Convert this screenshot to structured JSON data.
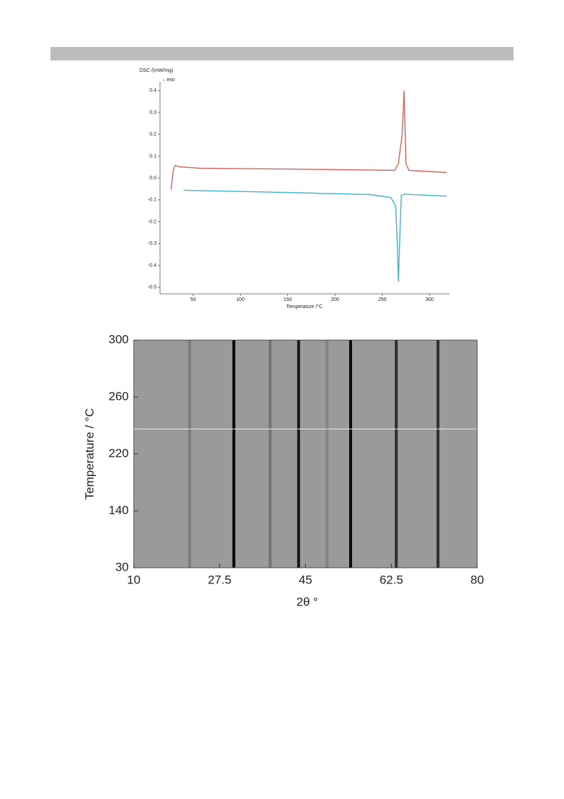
{
  "chart_data": [
    {
      "type": "line",
      "title": "DSC /(mW/mg)",
      "subtitle": "↓ exo",
      "x_label": "Temperature /°C",
      "xlim": [
        15,
        321
      ],
      "xticks": [
        50,
        100,
        150,
        200,
        250,
        300
      ],
      "ylim": [
        -0.53,
        0.44
      ],
      "yticks": [
        0.4,
        0.3,
        0.2,
        0.1,
        {
          "value": 0,
          "label": "0.0"
        },
        -0.1,
        -0.2,
        -0.3,
        -0.4,
        -0.5
      ],
      "series": [
        {
          "color": "#d4625a",
          "x": [
            26.7,
            29,
            31,
            36,
            57,
            147,
            263,
            267,
            271,
            273,
            275,
            278,
            318
          ],
          "values": [
            -0.053,
            0.035,
            0.058,
            0.051,
            0.045,
            0.041,
            0.035,
            0.067,
            0.2,
            0.4,
            0.067,
            0.035,
            0.025
          ]
        },
        {
          "color": "#3fb2d2",
          "x": [
            40,
            147,
            237,
            259,
            264,
            265.5,
            267,
            268.5,
            270,
            273,
            318
          ],
          "values": [
            -0.056,
            -0.066,
            -0.076,
            -0.089,
            -0.128,
            -0.26,
            -0.474,
            -0.26,
            -0.08,
            -0.074,
            -0.083
          ]
        }
      ]
    },
    {
      "type": "heatmap",
      "x_label": "2θ °",
      "y_label": "Temperature / °C",
      "xlim": [
        10,
        80
      ],
      "xticks": [
        10,
        27.5,
        45,
        62.5,
        80
      ],
      "ylim": [
        30,
        300
      ],
      "yticks": [
        30,
        140,
        220,
        260,
        300
      ],
      "peaks": {
        "two_theta": [
          21.4,
          30.4,
          37.8,
          43.6,
          49.4,
          54.2,
          63.5,
          72.0
        ],
        "intensity": [
          0.2,
          1.0,
          0.25,
          0.85,
          0.15,
          0.95,
          0.7,
          0.7
        ]
      }
    }
  ]
}
